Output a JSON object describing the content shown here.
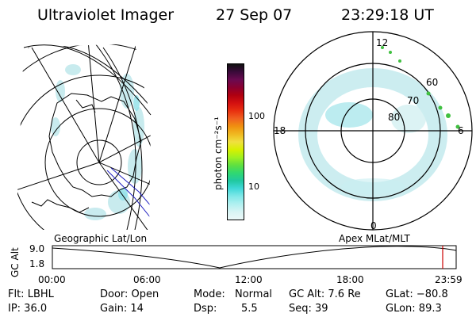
{
  "header": {
    "instrument": "Ultraviolet Imager",
    "date": "27 Sep 07",
    "time": "23:29:18 UT"
  },
  "colorbar": {
    "unit": "photon cm⁻²s⁻¹",
    "ticks": [
      "100",
      "10"
    ],
    "colors": [
      "#101010",
      "#3a0a3a",
      "#6a0a50",
      "#8a0030",
      "#b00010",
      "#d41010",
      "#e83010",
      "#f06020",
      "#f09010",
      "#f0b820",
      "#f0e040",
      "#d8f000",
      "#a0f020",
      "#60e040",
      "#30d870",
      "#20c8a0",
      "#40d8d8",
      "#80e8e8",
      "#b0f0f0",
      "#d8f4f4",
      "#ecf8f8"
    ]
  },
  "geographic": {
    "label": "Geographic Lat/Lon"
  },
  "apex": {
    "label": "Apex  MLat/MLT",
    "lat_labels": [
      "60",
      "70",
      "80"
    ],
    "mlt_labels": [
      "12",
      "18",
      "6",
      "0"
    ]
  },
  "altitude_plot": {
    "ylabel": "GC Alt",
    "y_ticks": [
      "9.0",
      "1.8"
    ],
    "x_ticks": [
      "00:00",
      "06:00",
      "12:00",
      "18:00",
      "23:59"
    ],
    "marker_color": "#cc0000"
  },
  "info": {
    "filter": "Flt: LBHL",
    "ip": "IP: 36.0",
    "door": "Door: Open",
    "gain": "Gain: 14",
    "mode_label": "Mode:",
    "mode_value": "Normal",
    "dsp_label": "Dsp:",
    "dsp_value": "5.5",
    "gc_alt": "GC Alt: 7.6 Re",
    "seq": "Seq: 39",
    "glat": "GLat: −80.8",
    "glon": "GLon:  89.3"
  }
}
